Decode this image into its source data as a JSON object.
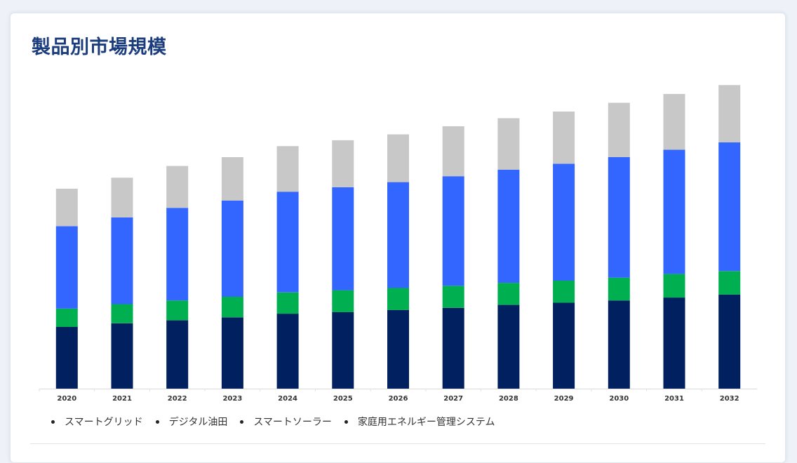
{
  "page": {
    "title": "製品別市場規模"
  },
  "chart_data": {
    "type": "bar",
    "stacked": true,
    "categories": [
      "2020",
      "2021",
      "2022",
      "2023",
      "2024",
      "2025",
      "2026",
      "2027",
      "2028",
      "2029",
      "2030",
      "2031",
      "2032"
    ],
    "series": [
      {
        "name": "スマートグリッド",
        "color": "#00205f",
        "values": [
          84,
          89,
          93,
          97,
          102,
          104,
          107,
          110,
          114,
          117,
          120,
          124,
          128
        ]
      },
      {
        "name": "デジタル油田",
        "color": "#00b050",
        "values": [
          25,
          26,
          27,
          28,
          29,
          30,
          30,
          30,
          30,
          30,
          31,
          32,
          32
        ]
      },
      {
        "name": "スマートソーラー",
        "color": "#3366ff",
        "values": [
          112,
          118,
          126,
          131,
          137,
          140,
          144,
          149,
          154,
          159,
          164,
          169,
          175
        ]
      },
      {
        "name": "家庭用エネルギー管理システム",
        "color": "#c8c8c8",
        "values": [
          51,
          54,
          57,
          59,
          62,
          64,
          65,
          68,
          70,
          71,
          74,
          76,
          78
        ]
      }
    ],
    "ylim": [
      0,
      420
    ],
    "grid": false,
    "legend_position": "bottom-left",
    "xlabel": "",
    "ylabel": ""
  }
}
